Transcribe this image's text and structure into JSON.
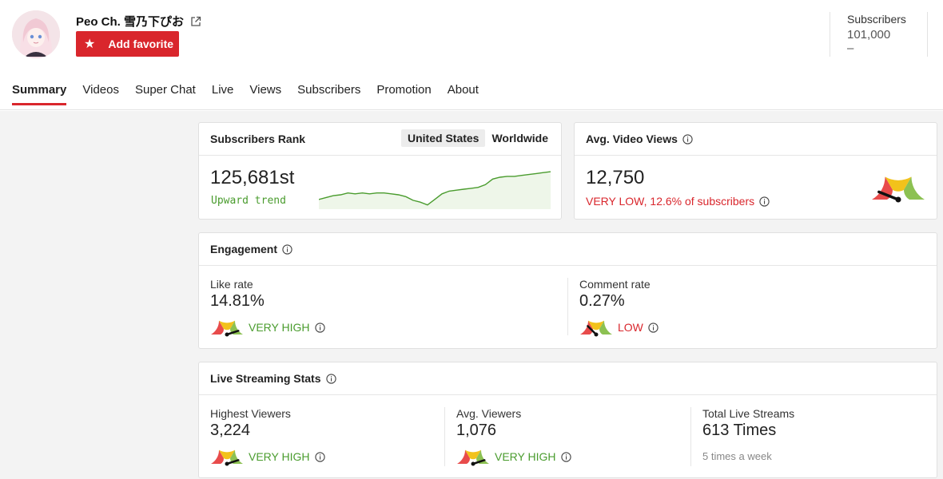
{
  "header": {
    "channel_name": "Peo Ch. 雪乃下ぴお",
    "favorite_label": "Add favorite",
    "subscribers_label": "Subscribers",
    "subscribers_value": "101,000",
    "subscribers_change": "–"
  },
  "tabs": [
    {
      "label": "Summary",
      "active": true
    },
    {
      "label": "Videos"
    },
    {
      "label": "Super Chat"
    },
    {
      "label": "Live"
    },
    {
      "label": "Views"
    },
    {
      "label": "Subscribers"
    },
    {
      "label": "Promotion"
    },
    {
      "label": "About"
    }
  ],
  "subscribers_rank": {
    "title": "Subscribers Rank",
    "options": [
      "United States",
      "Worldwide"
    ],
    "selected": "United States",
    "value": "125,681st",
    "trend": "Upward trend",
    "sparkline": [
      52,
      50,
      48,
      47,
      45,
      46,
      45,
      46,
      45,
      45,
      46,
      47,
      49,
      53,
      55,
      58,
      52,
      46,
      43,
      42,
      41,
      40,
      39,
      36,
      30,
      28,
      27,
      27,
      26,
      25,
      24,
      23,
      22
    ]
  },
  "avg_video_views": {
    "title": "Avg. Video Views",
    "value": "12,750",
    "rating": "VERY LOW, 12.6% of subscribers",
    "gauge_level": 0.12
  },
  "engagement": {
    "title": "Engagement",
    "like_rate_label": "Like rate",
    "like_rate_value": "14.81%",
    "like_rating": "VERY HIGH",
    "like_gauge_level": 0.9,
    "comment_rate_label": "Comment rate",
    "comment_rate_value": "0.27%",
    "comment_rating": "LOW",
    "comment_gauge_level": 0.25
  },
  "live_stats": {
    "title": "Live Streaming Stats",
    "highest_label": "Highest Viewers",
    "highest_value": "3,224",
    "highest_rating": "VERY HIGH",
    "highest_gauge_level": 0.9,
    "avg_label": "Avg. Viewers",
    "avg_value": "1,076",
    "avg_rating": "VERY HIGH",
    "avg_gauge_level": 0.9,
    "total_label": "Total Live Streams",
    "total_value": "613 Times",
    "total_sub": "5 times a week"
  },
  "colors": {
    "accent": "#d9262c",
    "positive": "#4a9c2e",
    "gauge_red": "#e84b4b",
    "gauge_yellow": "#f2c21b",
    "gauge_green": "#8cc152"
  }
}
